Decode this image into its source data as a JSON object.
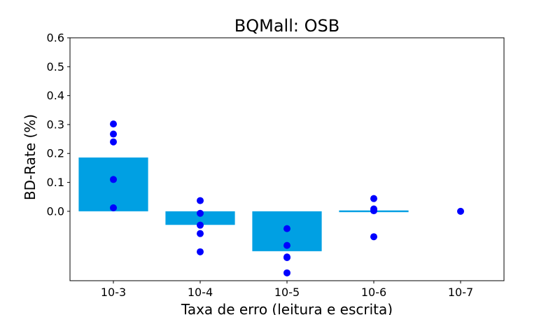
{
  "chart_data": {
    "type": "bar",
    "title": "BQMall: OSB",
    "xlabel": "Taxa de erro (leitura e escrita)",
    "ylabel": "BD-Rate (%)",
    "categories": [
      "10-3",
      "10-4",
      "10-5",
      "10-6",
      "10-7"
    ],
    "values": [
      0.186,
      -0.047,
      -0.138,
      -0.004,
      0.0
    ],
    "points": [
      [
        0.302,
        0.267,
        0.24,
        0.11,
        0.012
      ],
      [
        0.037,
        -0.007,
        -0.048,
        -0.077,
        -0.14
      ],
      [
        -0.06,
        -0.118,
        -0.158,
        -0.16,
        -0.213
      ],
      [
        0.044,
        0.008,
        0.002,
        -0.088
      ],
      [
        0.0
      ]
    ],
    "yticks": [
      0.0,
      0.1,
      0.2,
      0.3,
      0.4,
      0.5,
      0.6
    ],
    "ytick_labels": [
      "0.0",
      "0.1",
      "0.2",
      "0.3",
      "0.4",
      "0.5",
      "0.6"
    ],
    "ylim": [
      -0.24,
      0.6
    ],
    "bar_color": "#00a0e3",
    "point_color": "#0000ff",
    "grid": false,
    "legend": "none"
  }
}
